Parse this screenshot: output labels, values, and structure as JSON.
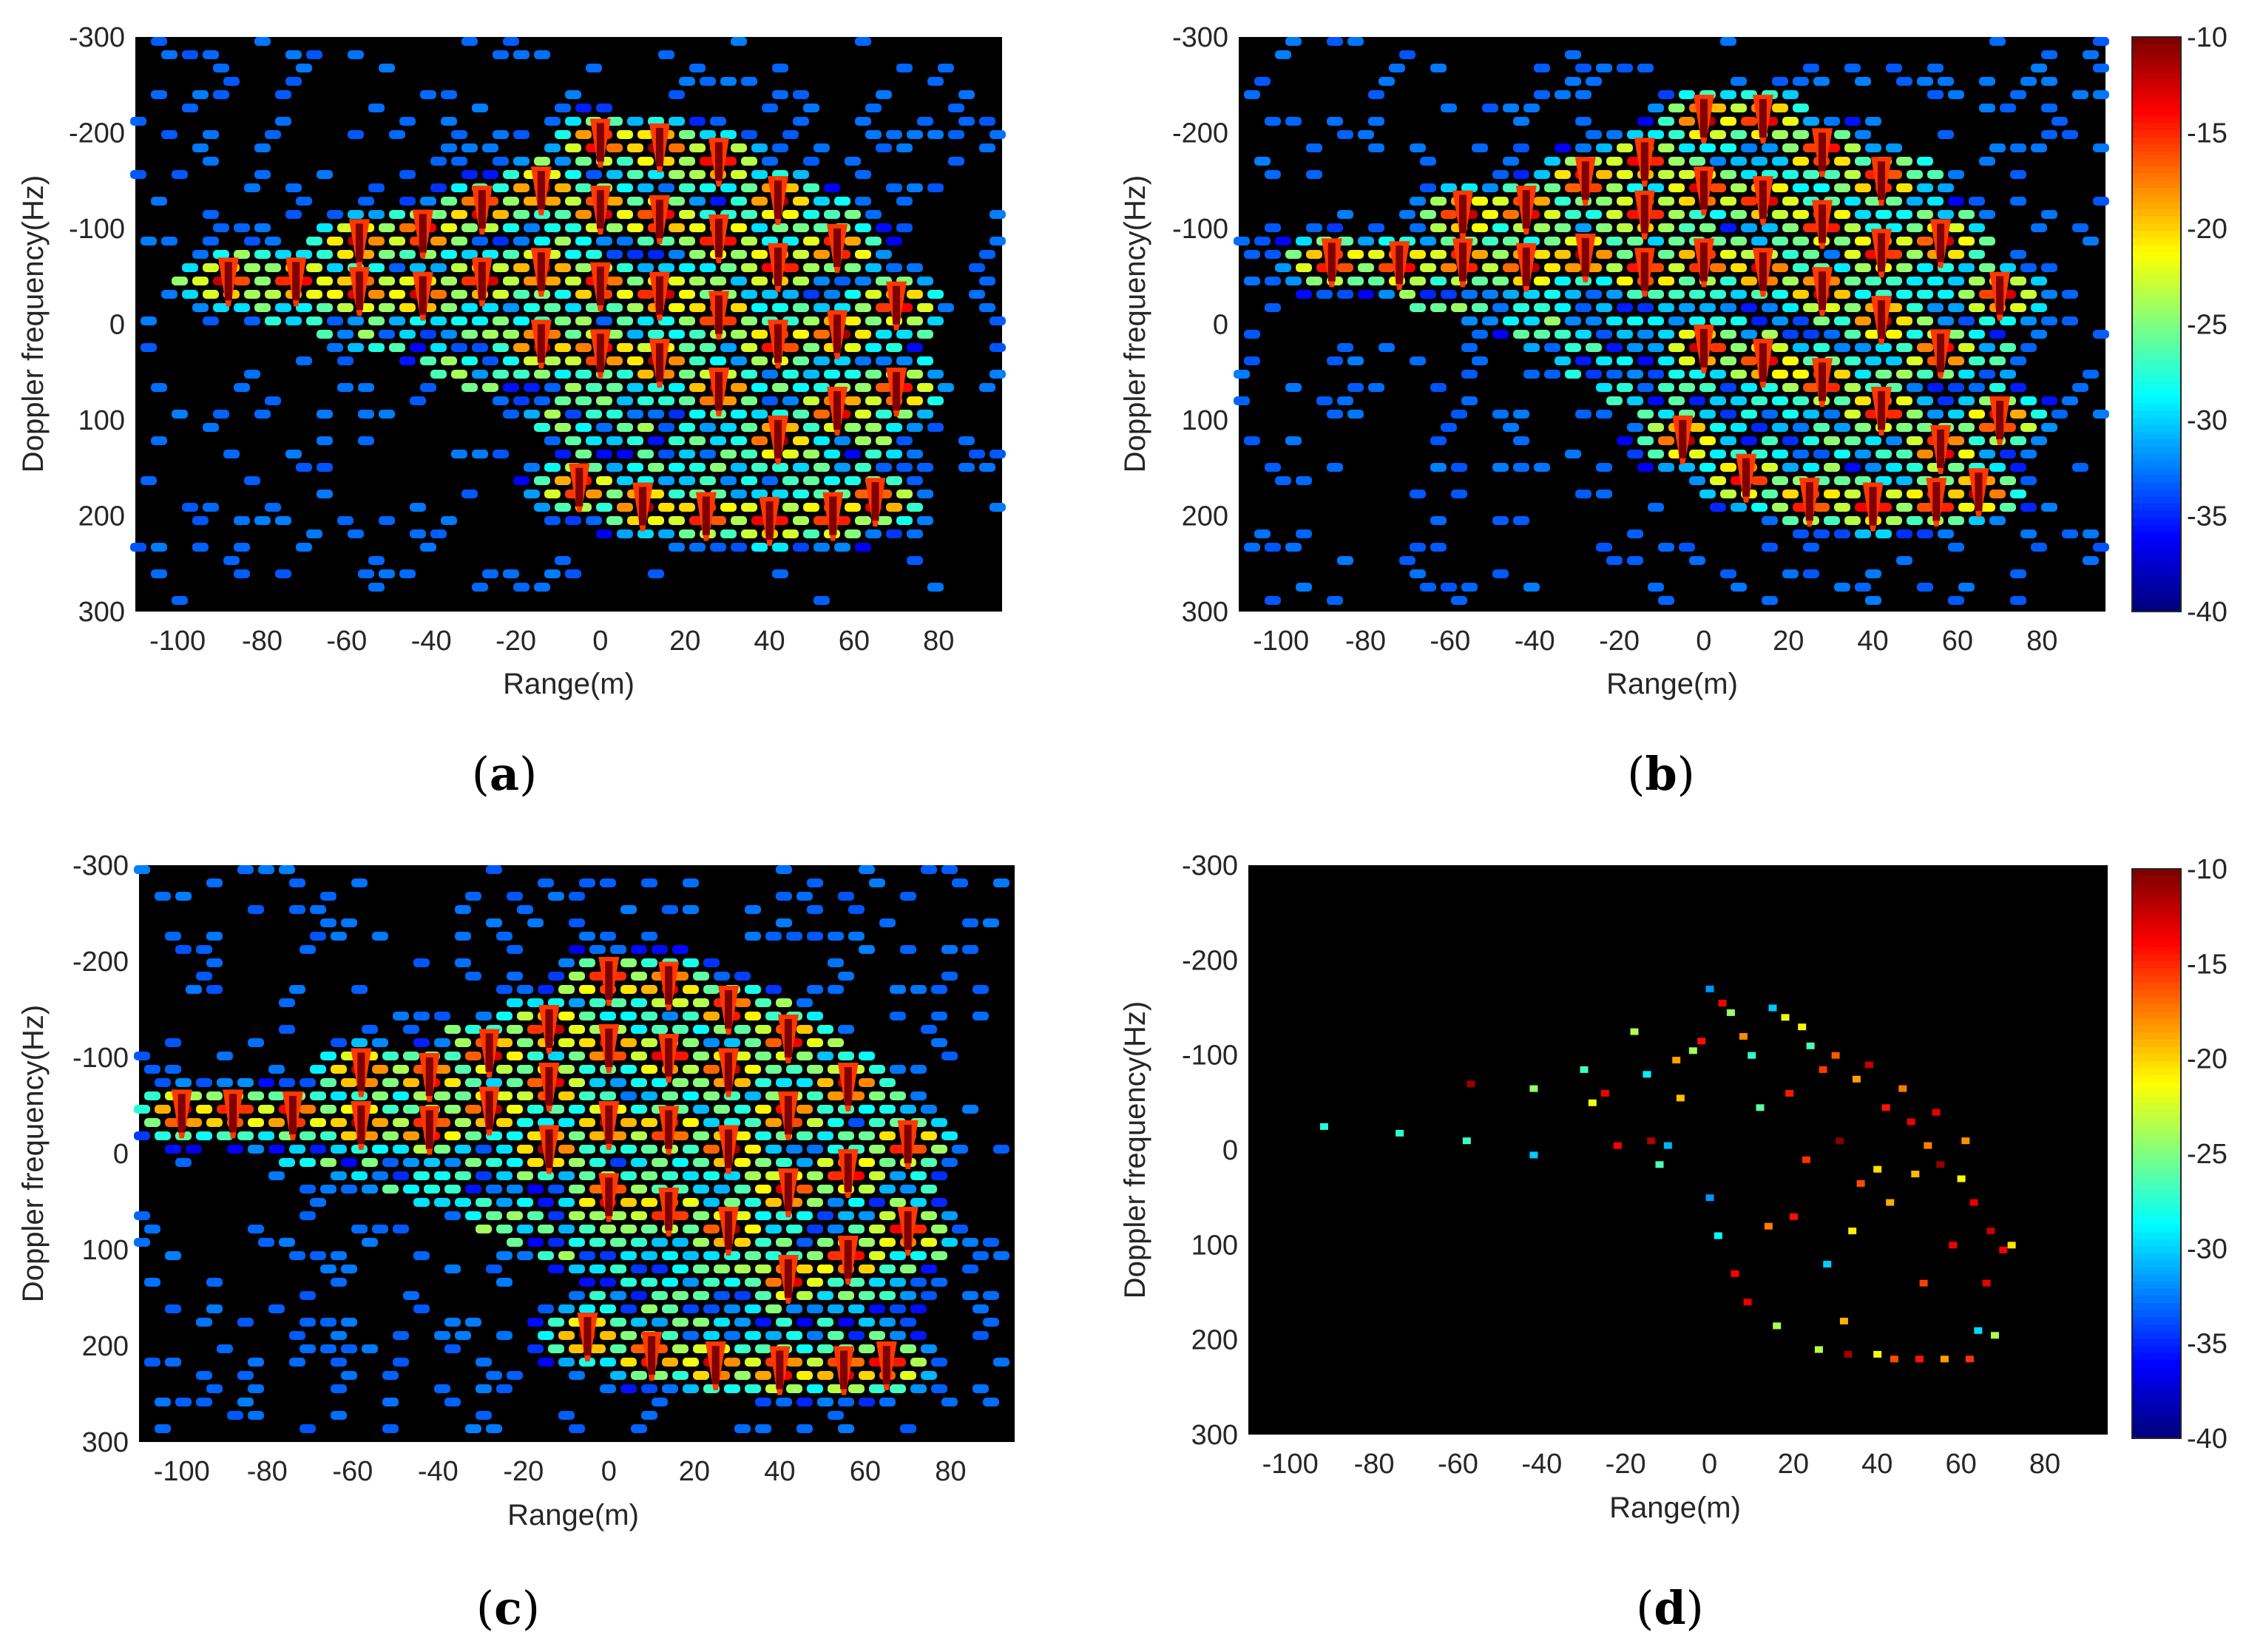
{
  "chart_data": [
    {
      "type": "heatmap",
      "panel_label": "a",
      "xlabel": "Range(m)",
      "ylabel": "Doppler frequency(Hz)",
      "xlim": [
        -110,
        95
      ],
      "ylim": [
        -300,
        300
      ],
      "y_reversed": true,
      "xticks": [
        -100,
        -80,
        -60,
        -40,
        -20,
        0,
        20,
        40,
        60,
        80
      ],
      "yticks": [
        -300,
        -200,
        -100,
        0,
        100,
        200,
        300
      ],
      "colorbar": null,
      "pattern": "dense",
      "row_offset": 0,
      "hull": [
        [
          -100,
          -65
        ],
        [
          -85,
          -75
        ],
        [
          -60,
          -95
        ],
        [
          -40,
          -115
        ],
        [
          -20,
          -160
        ],
        [
          0,
          -210
        ],
        [
          20,
          -205
        ],
        [
          40,
          -175
        ],
        [
          60,
          -130
        ],
        [
          75,
          -50
        ],
        [
          80,
          60
        ],
        [
          75,
          150
        ],
        [
          65,
          220
        ],
        [
          30,
          225
        ],
        [
          10,
          215
        ],
        [
          -10,
          120
        ],
        [
          -40,
          50
        ],
        [
          -70,
          10
        ],
        [
          -100,
          -35
        ]
      ],
      "scatterers": [
        [
          -88,
          -45
        ],
        [
          -72,
          -45
        ],
        [
          -57,
          -85
        ],
        [
          -57,
          -35
        ],
        [
          -42,
          -95
        ],
        [
          -42,
          -30
        ],
        [
          -28,
          -120
        ],
        [
          -28,
          -45
        ],
        [
          -14,
          -140
        ],
        [
          -14,
          -55
        ],
        [
          -14,
          20
        ],
        [
          0,
          -190
        ],
        [
          0,
          -120
        ],
        [
          0,
          -40
        ],
        [
          0,
          30
        ],
        [
          14,
          -185
        ],
        [
          14,
          -110
        ],
        [
          14,
          -30
        ],
        [
          14,
          40
        ],
        [
          28,
          -170
        ],
        [
          28,
          -90
        ],
        [
          28,
          -10
        ],
        [
          28,
          70
        ],
        [
          42,
          -130
        ],
        [
          42,
          -60
        ],
        [
          42,
          20
        ],
        [
          42,
          120
        ],
        [
          56,
          -80
        ],
        [
          56,
          10
        ],
        [
          56,
          90
        ],
        [
          70,
          -20
        ],
        [
          70,
          70
        ],
        [
          -5,
          170
        ],
        [
          10,
          190
        ],
        [
          25,
          200
        ],
        [
          40,
          205
        ],
        [
          55,
          200
        ],
        [
          65,
          185
        ]
      ],
      "tails": [
        [
          -60,
          -100,
          -60,
          -30
        ],
        [
          80,
          200,
          20,
          90
        ]
      ]
    },
    {
      "type": "heatmap",
      "panel_label": "b",
      "xlabel": "Range(m)",
      "ylabel": "Doppler frequency(Hz)",
      "xlim": [
        -110,
        95
      ],
      "ylim": [
        -300,
        300
      ],
      "y_reversed": true,
      "xticks": [
        -100,
        -80,
        -60,
        -40,
        -20,
        0,
        20,
        40,
        60,
        80
      ],
      "yticks": [
        -300,
        -200,
        -100,
        0,
        100,
        200,
        300
      ],
      "colorbar": {
        "ticks": [
          -10,
          -15,
          -20,
          -25,
          -30,
          -35,
          -40
        ],
        "range": [
          -40,
          -10
        ]
      },
      "pattern": "dense",
      "row_offset": 1,
      "hull": [
        [
          -100,
          -75
        ],
        [
          -85,
          -80
        ],
        [
          -60,
          -115
        ],
        [
          -40,
          -145
        ],
        [
          -20,
          -175
        ],
        [
          0,
          -225
        ],
        [
          20,
          -225
        ],
        [
          40,
          -200
        ],
        [
          60,
          -155
        ],
        [
          70,
          -60
        ],
        [
          75,
          60
        ],
        [
          70,
          160
        ],
        [
          60,
          200
        ],
        [
          30,
          205
        ],
        [
          10,
          195
        ],
        [
          -10,
          110
        ],
        [
          -40,
          30
        ],
        [
          -70,
          -20
        ],
        [
          -100,
          -60
        ]
      ],
      "scatterers": [
        [
          -88,
          -65
        ],
        [
          -72,
          -62
        ],
        [
          -57,
          -115
        ],
        [
          -57,
          -65
        ],
        [
          -42,
          -120
        ],
        [
          -42,
          -60
        ],
        [
          -28,
          -150
        ],
        [
          -28,
          -70
        ],
        [
          -14,
          -170
        ],
        [
          -14,
          -115
        ],
        [
          -14,
          -55
        ],
        [
          0,
          -215
        ],
        [
          0,
          -140
        ],
        [
          0,
          -65
        ],
        [
          0,
          25
        ],
        [
          14,
          -215
        ],
        [
          14,
          -130
        ],
        [
          14,
          -55
        ],
        [
          14,
          40
        ],
        [
          28,
          -180
        ],
        [
          28,
          -105
        ],
        [
          28,
          -35
        ],
        [
          28,
          60
        ],
        [
          42,
          -150
        ],
        [
          42,
          -75
        ],
        [
          42,
          -5
        ],
        [
          42,
          90
        ],
        [
          56,
          -85
        ],
        [
          56,
          30
        ],
        [
          56,
          130
        ],
        [
          70,
          -30
        ],
        [
          70,
          100
        ],
        [
          -5,
          120
        ],
        [
          10,
          160
        ],
        [
          25,
          185
        ],
        [
          40,
          190
        ],
        [
          55,
          185
        ],
        [
          65,
          175
        ]
      ],
      "tails": [
        [
          -60,
          -100,
          -60,
          -30
        ],
        [
          80,
          200,
          20,
          90
        ]
      ]
    },
    {
      "type": "heatmap",
      "panel_label": "c",
      "xlabel": "Range(m)",
      "ylabel": "Doppler frequency(Hz)",
      "xlim": [
        -110,
        95
      ],
      "ylim": [
        -300,
        300
      ],
      "y_reversed": true,
      "xticks": [
        -100,
        -80,
        -60,
        -40,
        -20,
        0,
        20,
        40,
        60,
        80
      ],
      "yticks": [
        -300,
        -200,
        -100,
        0,
        100,
        200,
        300
      ],
      "colorbar": null,
      "pattern": "dense",
      "row_offset": 2,
      "hull": [
        [
          -105,
          -40
        ],
        [
          -85,
          -50
        ],
        [
          -60,
          -85
        ],
        [
          -40,
          -125
        ],
        [
          -20,
          -170
        ],
        [
          0,
          -195
        ],
        [
          20,
          -190
        ],
        [
          40,
          -160
        ],
        [
          60,
          -110
        ],
        [
          75,
          -30
        ],
        [
          80,
          70
        ],
        [
          75,
          160
        ],
        [
          65,
          225
        ],
        [
          30,
          230
        ],
        [
          10,
          220
        ],
        [
          -10,
          130
        ],
        [
          -40,
          60
        ],
        [
          -70,
          20
        ],
        [
          -105,
          -30
        ]
      ],
      "scatterers": [
        [
          -100,
          -42
        ],
        [
          -88,
          -42
        ],
        [
          -74,
          -40
        ],
        [
          -58,
          -85
        ],
        [
          -58,
          -30
        ],
        [
          -42,
          -80
        ],
        [
          -42,
          -25
        ],
        [
          -28,
          -105
        ],
        [
          -28,
          -45
        ],
        [
          -14,
          -130
        ],
        [
          -14,
          -70
        ],
        [
          -14,
          -5
        ],
        [
          0,
          -180
        ],
        [
          0,
          -110
        ],
        [
          0,
          -30
        ],
        [
          0,
          45
        ],
        [
          14,
          -175
        ],
        [
          14,
          -100
        ],
        [
          14,
          -25
        ],
        [
          14,
          60
        ],
        [
          28,
          -150
        ],
        [
          28,
          -85
        ],
        [
          28,
          -5
        ],
        [
          28,
          80
        ],
        [
          42,
          -120
        ],
        [
          42,
          -40
        ],
        [
          42,
          40
        ],
        [
          42,
          130
        ],
        [
          56,
          -70
        ],
        [
          56,
          20
        ],
        [
          56,
          110
        ],
        [
          70,
          -10
        ],
        [
          70,
          80
        ],
        [
          -5,
          190
        ],
        [
          10,
          210
        ],
        [
          25,
          220
        ],
        [
          40,
          225
        ],
        [
          55,
          225
        ],
        [
          65,
          220
        ]
      ],
      "tails": [
        [
          -60,
          -100,
          -60,
          -30
        ],
        [
          80,
          200,
          20,
          90
        ]
      ]
    },
    {
      "type": "heatmap",
      "panel_label": "d",
      "xlabel": "Range(m)",
      "ylabel": "Doppler frequency(Hz)",
      "xlim": [
        -110,
        95
      ],
      "ylim": [
        -300,
        300
      ],
      "y_reversed": true,
      "xticks": [
        -100,
        -80,
        -60,
        -40,
        -20,
        0,
        20,
        40,
        60,
        80
      ],
      "yticks": [
        -300,
        -200,
        -100,
        0,
        100,
        200,
        300
      ],
      "colorbar": {
        "ticks": [
          -10,
          -15,
          -20,
          -25,
          -30,
          -35,
          -40
        ],
        "range": [
          -40,
          -10
        ]
      },
      "pattern": "sparse",
      "points": [
        [
          -92,
          -25
        ],
        [
          -74,
          -18
        ],
        [
          -58,
          -10
        ],
        [
          -57,
          -70
        ],
        [
          -42,
          -65
        ],
        [
          -42,
          5
        ],
        [
          -30,
          -85
        ],
        [
          -28,
          -50
        ],
        [
          -25,
          -60
        ],
        [
          -22,
          -5
        ],
        [
          -18,
          -125
        ],
        [
          -15,
          -80
        ],
        [
          -14,
          -10
        ],
        [
          -12,
          15
        ],
        [
          -10,
          -5
        ],
        [
          -8,
          -95
        ],
        [
          -7,
          -55
        ],
        [
          -4,
          -105
        ],
        [
          -2,
          -115
        ],
        [
          0,
          -170
        ],
        [
          0,
          50
        ],
        [
          2,
          90
        ],
        [
          3,
          -155
        ],
        [
          5,
          -145
        ],
        [
          6,
          130
        ],
        [
          8,
          -120
        ],
        [
          9,
          160
        ],
        [
          10,
          -100
        ],
        [
          12,
          -45
        ],
        [
          14,
          80
        ],
        [
          15,
          -150
        ],
        [
          16,
          185
        ],
        [
          18,
          -140
        ],
        [
          19,
          -60
        ],
        [
          20,
          70
        ],
        [
          22,
          -130
        ],
        [
          23,
          10
        ],
        [
          24,
          -110
        ],
        [
          26,
          210
        ],
        [
          27,
          -85
        ],
        [
          28,
          120
        ],
        [
          30,
          -100
        ],
        [
          31,
          -10
        ],
        [
          32,
          180
        ],
        [
          33,
          215
        ],
        [
          34,
          85
        ],
        [
          35,
          -75
        ],
        [
          36,
          35
        ],
        [
          38,
          -90
        ],
        [
          40,
          20
        ],
        [
          40,
          215
        ],
        [
          42,
          -45
        ],
        [
          43,
          55
        ],
        [
          44,
          220
        ],
        [
          46,
          -65
        ],
        [
          48,
          -30
        ],
        [
          49,
          25
        ],
        [
          50,
          220
        ],
        [
          51,
          140
        ],
        [
          52,
          -5
        ],
        [
          54,
          -40
        ],
        [
          55,
          15
        ],
        [
          56,
          220
        ],
        [
          58,
          100
        ],
        [
          60,
          30
        ],
        [
          61,
          -10
        ],
        [
          62,
          220
        ],
        [
          63,
          55
        ],
        [
          64,
          190
        ],
        [
          66,
          140
        ],
        [
          67,
          85
        ],
        [
          68,
          195
        ],
        [
          70,
          105
        ],
        [
          72,
          100
        ]
      ]
    }
  ]
}
